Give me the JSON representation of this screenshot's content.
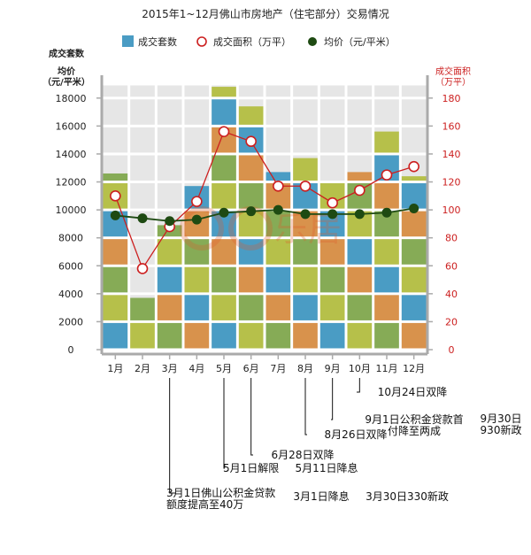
{
  "chart_data": {
    "type": "bar+line",
    "title": "2015年1~12月佛山市房地产（住宅部分）交易情况",
    "legend": {
      "position": "top",
      "items": [
        {
          "label": "成交套数",
          "kind": "bar",
          "color": "#4a9cc4"
        },
        {
          "label": "成交面积（万平）",
          "kind": "line-hollow",
          "color": "#cc1f1f"
        },
        {
          "label": "均价（元/平米）",
          "kind": "line-solid",
          "color": "#1e4a12"
        }
      ]
    },
    "left_axis": {
      "title_lines": [
        "成交套数",
        "均价",
        "（元/平米）"
      ],
      "ticks": [
        "0",
        "2000",
        "4000",
        "6000",
        "8000",
        "10000",
        "12000",
        "14000",
        "16000",
        "18000"
      ],
      "range": [
        0,
        19000
      ]
    },
    "right_axis": {
      "title_lines": [
        "成交面积",
        "（万平）"
      ],
      "ticks": [
        "0",
        "20",
        "40",
        "60",
        "80",
        "100",
        "120",
        "140",
        "160",
        "180"
      ],
      "range": [
        0,
        190
      ],
      "color": "#cc1f1f"
    },
    "categories": [
      "1月",
      "2月",
      "3月",
      "4月",
      "5月",
      "6月",
      "7月",
      "8月",
      "9月",
      "10月",
      "11月",
      "12月"
    ],
    "series": [
      {
        "name": "成交套数",
        "axis": "left",
        "values": [
          12700,
          3800,
          9000,
          11800,
          18900,
          17500,
          12800,
          13800,
          12000,
          12800,
          15700,
          12500
        ]
      },
      {
        "name": "成交面积（万平）",
        "axis": "right",
        "values": [
          110,
          58,
          88,
          106,
          156,
          149,
          117,
          117,
          105,
          114,
          125,
          131
        ]
      },
      {
        "name": "均价（元/平米）",
        "axis": "left",
        "values": [
          9600,
          9400,
          9200,
          9300,
          9800,
          9900,
          10000,
          9700,
          9700,
          9700,
          9800,
          10100
        ]
      }
    ],
    "bar_color_cycle": [
      "#4a9cc4",
      "#b6c04a",
      "#86ab56",
      "#d8924c"
    ],
    "grid": true,
    "annotations": [
      {
        "lines": [
          "3月1日佛山公积金贷款",
          "额度提高至40万"
        ],
        "month": "3月"
      },
      {
        "lines": [
          "3月1日降息"
        ],
        "month": "3月"
      },
      {
        "lines": [
          "3月30日330新政"
        ],
        "month": "3月"
      },
      {
        "lines": [
          "5月1日解限"
        ],
        "month": "5月"
      },
      {
        "lines": [
          "5月11日降息"
        ],
        "month": "5月"
      },
      {
        "lines": [
          "6月28日双降"
        ],
        "month": "6月"
      },
      {
        "lines": [
          "8月26日双降"
        ],
        "month": "8月"
      },
      {
        "lines": [
          "9月1日公积金贷款首",
          "付降至两成"
        ],
        "month": "9月"
      },
      {
        "lines": [
          "9月30日",
          "930新政"
        ],
        "month": "9月"
      },
      {
        "lines": [
          "10月24日双降"
        ],
        "month": "10月"
      }
    ],
    "watermark": "乐居"
  }
}
